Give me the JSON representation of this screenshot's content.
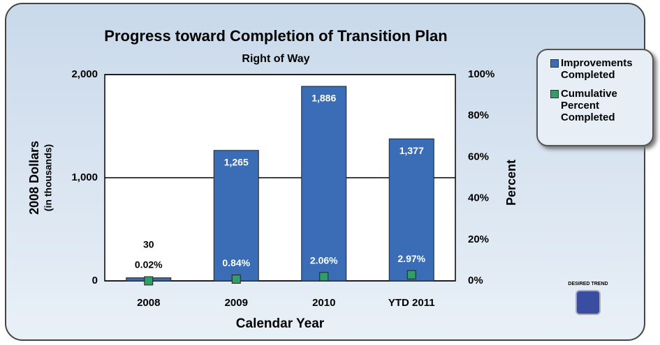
{
  "chart_data": {
    "type": "bar",
    "title": "Progress toward Completion of Transition Plan",
    "subtitle": "Right of Way",
    "y_label": "2008 Dollars",
    "y_label_sub": "(in thousands)",
    "y2_label": "Percent",
    "x_label": "Calendar Year",
    "categories": [
      "2008",
      "2009",
      "2010",
      "YTD 2011"
    ],
    "series": [
      {
        "name": "Improvements Completed",
        "color": "#3a6db5",
        "values": [
          30,
          1265,
          1886,
          1377
        ],
        "value_labels": [
          "30",
          "1,265",
          "1,886",
          "1,377"
        ]
      },
      {
        "name": "Cumulative Percent Completed",
        "color": "#2f9e6a",
        "axis": "y2",
        "values": [
          0.02,
          0.84,
          2.06,
          2.97
        ],
        "value_labels": [
          "0.02%",
          "0.84%",
          "2.06%",
          "2.97%"
        ]
      }
    ],
    "ylim": [
      0,
      2000
    ],
    "yticks": [
      0,
      {
        "value": 1000,
        "label": "1,000"
      },
      {
        "value": 2000,
        "label": "2,000"
      }
    ],
    "y2lim": [
      0,
      100
    ],
    "y2ticks": [
      {
        "value": 0,
        "label": "0%"
      },
      {
        "value": 20,
        "label": "20%"
      },
      {
        "value": 40,
        "label": "40%"
      },
      {
        "value": 60,
        "label": "60%"
      },
      {
        "value": 80,
        "label": "80%"
      },
      {
        "value": 100,
        "label": "100%"
      }
    ],
    "grid": true,
    "legend": "right"
  },
  "badge_text": "DESIRED TREND"
}
